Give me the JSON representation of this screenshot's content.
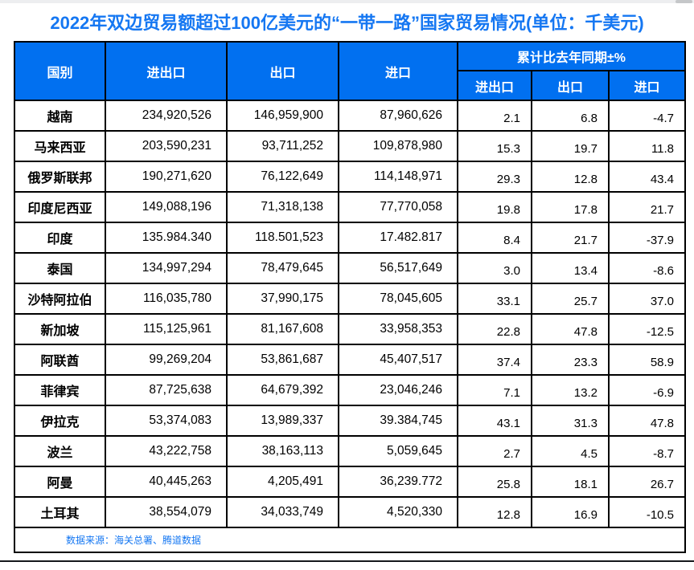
{
  "title": "2022年双边贸易额超过100亿美元的“一带一路”国家贸易情况(单位：千美元)",
  "colors": {
    "header_bg": "#0170f0",
    "header_text": "#ffffff",
    "title_text": "#1577f2",
    "source_text": "#1577f2",
    "border": "#000000"
  },
  "scrollbar": {
    "orientation": "horizontal"
  },
  "table": {
    "headers": {
      "country": "国别",
      "total": "进出口",
      "export": "出口",
      "import": "进口",
      "yoy_group": "累计比去年同期±%",
      "yoy_total": "进出口",
      "yoy_export": "出口",
      "yoy_import": "进口"
    },
    "rows": [
      {
        "country": "越南",
        "total": "234,920,526",
        "export": "146,959,900",
        "import": "87,960,626",
        "yoy_total": "2.1",
        "yoy_export": "6.8",
        "yoy_import": "-4.7"
      },
      {
        "country": "马来西亚",
        "total": "203,590,231",
        "export": "93,711,252",
        "import": "109,878,980",
        "yoy_total": "15.3",
        "yoy_export": "19.7",
        "yoy_import": "11.8"
      },
      {
        "country": "俄罗斯联邦",
        "total": "190,271,620",
        "export": "76,122,649",
        "import": "114,148,971",
        "yoy_total": "29.3",
        "yoy_export": "12.8",
        "yoy_import": "43.4"
      },
      {
        "country": "印度尼西亚",
        "total": "149,088,196",
        "export": "71,318,138",
        "import": "77,770,058",
        "yoy_total": "19.8",
        "yoy_export": "17.8",
        "yoy_import": "21.7"
      },
      {
        "country": "印度",
        "total": "135.984.340",
        "export": "118.501,523",
        "import": "17.482.817",
        "yoy_total": "8.4",
        "yoy_export": "21.7",
        "yoy_import": "-37.9"
      },
      {
        "country": "泰国",
        "total": "134,997,294",
        "export": "78,479,645",
        "import": "56,517,649",
        "yoy_total": "3.0",
        "yoy_export": "13.4",
        "yoy_import": "-8.6"
      },
      {
        "country": "沙特阿拉伯",
        "total": "116,035,780",
        "export": "37,990,175",
        "import": "78,045,605",
        "yoy_total": "33.1",
        "yoy_export": "25.7",
        "yoy_import": "37.0"
      },
      {
        "country": "新加坡",
        "total": "115,125,961",
        "export": "81,167,608",
        "import": "33,958,353",
        "yoy_total": "22.8",
        "yoy_export": "47.8",
        "yoy_import": "-12.5"
      },
      {
        "country": "阿联酋",
        "total": "99,269,204",
        "export": "53,861,687",
        "import": "45,407,517",
        "yoy_total": "37.4",
        "yoy_export": "23.3",
        "yoy_import": "58.9"
      },
      {
        "country": "菲律宾",
        "total": "87,725,638",
        "export": "64,679,392",
        "import": "23,046,246",
        "yoy_total": "7.1",
        "yoy_export": "13.2",
        "yoy_import": "-6.9"
      },
      {
        "country": "伊拉克",
        "total": "53,374,083",
        "export": "13,989,337",
        "import": "39.384,745",
        "yoy_total": "43.1",
        "yoy_export": "31.3",
        "yoy_import": "47.8"
      },
      {
        "country": "波兰",
        "total": "43,222,758",
        "export": "38,163,113",
        "import": "5,059,645",
        "yoy_total": "2.7",
        "yoy_export": "4.5",
        "yoy_import": "-8.7"
      },
      {
        "country": "阿曼",
        "total": "40,445,263",
        "export": "4,205,491",
        "import": "36,239.772",
        "yoy_total": "25.8",
        "yoy_export": "18.1",
        "yoy_import": "26.7"
      },
      {
        "country": "土耳其",
        "total": "38,554,079",
        "export": "34,033,749",
        "import": "4,520,330",
        "yoy_total": "12.8",
        "yoy_export": "16.9",
        "yoy_import": "-10.5"
      }
    ]
  },
  "source_note": "数据来源：海关总署、腾道数据"
}
